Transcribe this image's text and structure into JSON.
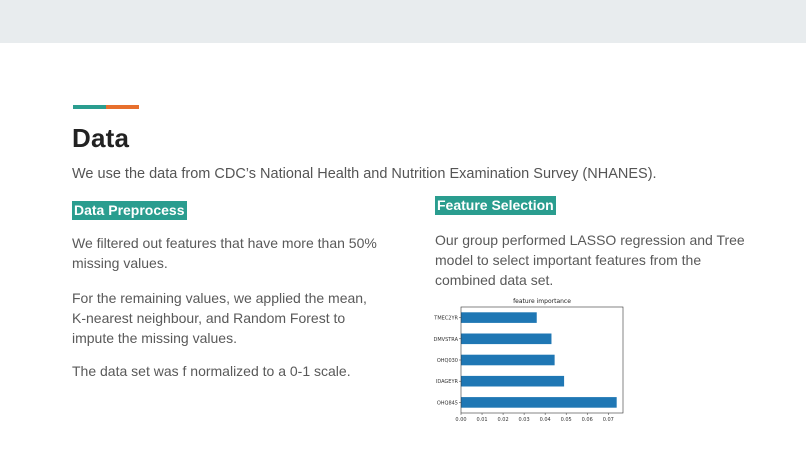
{
  "slide": {
    "title": "Data",
    "intro": "We use the data from CDC’s National Health and Nutrition Examination Survey (NHANES).",
    "left": {
      "heading": "Data Preprocess",
      "paragraphs": [
        "We  filtered out features that have more than 50% missing values.",
        "For the remaining values, we  applied the mean, K-nearest neighbour, and Random Forest to impute the missing values.",
        "The data set was f normalized to a 0-1 scale."
      ]
    },
    "right": {
      "heading": "Feature Selection",
      "paragraph": "Our group performed LASSO regression and Tree model to select important features from the combined data set."
    }
  },
  "colors": {
    "accent_teal": "#2a9d8f",
    "accent_orange": "#e76f2d",
    "bar": "#1f77b4"
  },
  "chart_data": {
    "type": "bar",
    "orientation": "horizontal",
    "title": "feature importance",
    "categories": [
      "TMEC2YR",
      "DMVSTRA",
      "OHQ030",
      "IDAGEYR",
      "OHQ845"
    ],
    "values": [
      0.036,
      0.043,
      0.0445,
      0.049,
      0.074
    ],
    "xlabel": "",
    "ylabel": "",
    "xlim": [
      0,
      0.077
    ],
    "xticks": [
      "0.00",
      "0.01",
      "0.02",
      "0.03",
      "0.04",
      "0.05",
      "0.06",
      "0.07"
    ],
    "grid": false
  }
}
